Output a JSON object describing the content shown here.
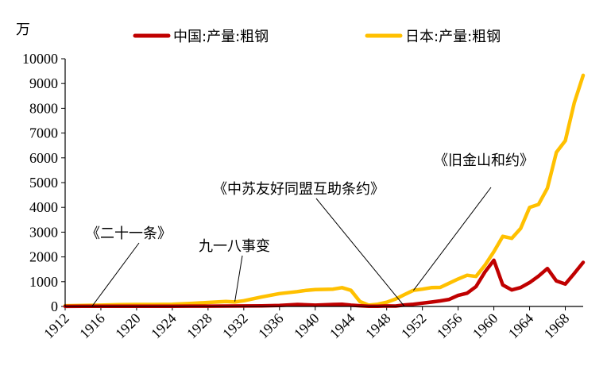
{
  "chart_data": {
    "type": "line",
    "yunit": "万",
    "ylim": [
      0,
      10000
    ],
    "yticks": [
      0,
      1000,
      2000,
      3000,
      4000,
      5000,
      6000,
      7000,
      8000,
      9000,
      10000
    ],
    "xlim": [
      1912,
      1970
    ],
    "xticks": [
      1912,
      1916,
      1920,
      1924,
      1928,
      1932,
      1936,
      1940,
      1944,
      1948,
      1952,
      1956,
      1960,
      1964,
      1968
    ],
    "grid": false,
    "legend_position": "top",
    "series": [
      {
        "name": "中国:产量:粗钢",
        "color": "#c00000",
        "points": [
          [
            1912,
            3
          ],
          [
            1914,
            5
          ],
          [
            1916,
            5
          ],
          [
            1918,
            6
          ],
          [
            1920,
            7
          ],
          [
            1922,
            8
          ],
          [
            1924,
            10
          ],
          [
            1926,
            12
          ],
          [
            1928,
            14
          ],
          [
            1930,
            15
          ],
          [
            1932,
            18
          ],
          [
            1934,
            25
          ],
          [
            1936,
            40
          ],
          [
            1938,
            80
          ],
          [
            1940,
            50
          ],
          [
            1942,
            80
          ],
          [
            1943,
            90
          ],
          [
            1944,
            50
          ],
          [
            1945,
            30
          ],
          [
            1946,
            10
          ],
          [
            1947,
            10
          ],
          [
            1948,
            20
          ],
          [
            1949,
            16
          ],
          [
            1950,
            61
          ],
          [
            1951,
            90
          ],
          [
            1952,
            135
          ],
          [
            1953,
            177
          ],
          [
            1954,
            223
          ],
          [
            1955,
            285
          ],
          [
            1956,
            447
          ],
          [
            1957,
            535
          ],
          [
            1958,
            800
          ],
          [
            1959,
            1387
          ],
          [
            1960,
            1866
          ],
          [
            1961,
            870
          ],
          [
            1962,
            667
          ],
          [
            1963,
            762
          ],
          [
            1964,
            964
          ],
          [
            1965,
            1223
          ],
          [
            1966,
            1532
          ],
          [
            1967,
            1029
          ],
          [
            1968,
            904
          ],
          [
            1969,
            1333
          ],
          [
            1970,
            1779
          ]
        ]
      },
      {
        "name": "日本:产量:粗钢",
        "color": "#ffc000",
        "points": [
          [
            1912,
            30
          ],
          [
            1914,
            40
          ],
          [
            1916,
            50
          ],
          [
            1918,
            70
          ],
          [
            1920,
            80
          ],
          [
            1922,
            80
          ],
          [
            1924,
            90
          ],
          [
            1926,
            120
          ],
          [
            1928,
            160
          ],
          [
            1930,
            200
          ],
          [
            1931,
            180
          ],
          [
            1932,
            230
          ],
          [
            1934,
            380
          ],
          [
            1936,
            520
          ],
          [
            1938,
            600
          ],
          [
            1939,
            650
          ],
          [
            1940,
            680
          ],
          [
            1942,
            700
          ],
          [
            1943,
            760
          ],
          [
            1944,
            650
          ],
          [
            1945,
            200
          ],
          [
            1946,
            50
          ],
          [
            1947,
            90
          ],
          [
            1948,
            170
          ],
          [
            1949,
            300
          ],
          [
            1950,
            480
          ],
          [
            1951,
            650
          ],
          [
            1952,
            700
          ],
          [
            1953,
            760
          ],
          [
            1954,
            770
          ],
          [
            1955,
            940
          ],
          [
            1956,
            1110
          ],
          [
            1957,
            1260
          ],
          [
            1958,
            1210
          ],
          [
            1959,
            1660
          ],
          [
            1960,
            2210
          ],
          [
            1961,
            2830
          ],
          [
            1962,
            2750
          ],
          [
            1963,
            3150
          ],
          [
            1964,
            4000
          ],
          [
            1965,
            4120
          ],
          [
            1966,
            4780
          ],
          [
            1967,
            6220
          ],
          [
            1968,
            6690
          ],
          [
            1969,
            8220
          ],
          [
            1970,
            9330
          ]
        ]
      }
    ],
    "annotations": [
      {
        "text": "《二十一条》",
        "point": [
          1915,
          0
        ]
      },
      {
        "text": "九一八事变",
        "point": [
          1931,
          200
        ]
      },
      {
        "text": "《中苏友好同盟互助条约》",
        "point": [
          1950,
          0
        ]
      },
      {
        "text": "《旧金山和约》",
        "point": [
          1951,
          650
        ]
      }
    ]
  }
}
